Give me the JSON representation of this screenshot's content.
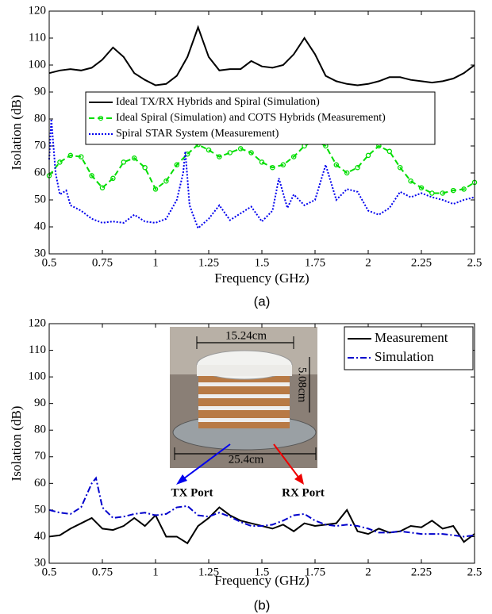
{
  "chart_data": [
    {
      "type": "line",
      "caption": "(a)",
      "xlabel": "Frequency (GHz)",
      "ylabel": "Isolation (dB)",
      "xlim": [
        0.5,
        2.5
      ],
      "ylim": [
        30,
        120
      ],
      "xticks": [
        0.5,
        0.75,
        1,
        1.25,
        1.5,
        1.75,
        2,
        2.25,
        2.5
      ],
      "yticks": [
        30,
        40,
        50,
        60,
        70,
        80,
        90,
        100,
        110,
        120
      ],
      "legend": "upper center",
      "series": [
        {
          "name": "Ideal TX/RX Hybrids and Spiral (Simulation)",
          "color": "#000000",
          "linestyle": "solid",
          "x": [
            0.5,
            0.55,
            0.6,
            0.65,
            0.7,
            0.75,
            0.8,
            0.85,
            0.9,
            0.95,
            1.0,
            1.05,
            1.1,
            1.15,
            1.2,
            1.25,
            1.3,
            1.35,
            1.4,
            1.45,
            1.5,
            1.55,
            1.6,
            1.65,
            1.7,
            1.75,
            1.8,
            1.85,
            1.9,
            1.95,
            2.0,
            2.05,
            2.1,
            2.15,
            2.2,
            2.25,
            2.3,
            2.35,
            2.4,
            2.45,
            2.5
          ],
          "values": [
            97,
            98,
            98.5,
            98,
            99,
            102,
            106.5,
            103,
            97,
            94.5,
            92.5,
            93,
            96,
            103,
            114,
            103,
            98,
            98.5,
            98.5,
            101.5,
            99.5,
            99,
            100,
            104,
            110,
            104,
            96,
            94,
            93,
            92.5,
            93,
            94,
            95.5,
            95.5,
            94.5,
            94,
            93.5,
            94,
            95,
            97,
            100
          ]
        },
        {
          "name": "Ideal Spiral (Simulation) and COTS Hybrids (Measurement)",
          "color": "#00dd00",
          "linestyle": "dashed",
          "marker": "circle",
          "x": [
            0.5,
            0.55,
            0.6,
            0.65,
            0.7,
            0.75,
            0.8,
            0.85,
            0.9,
            0.95,
            1.0,
            1.05,
            1.1,
            1.15,
            1.2,
            1.25,
            1.3,
            1.35,
            1.4,
            1.45,
            1.5,
            1.55,
            1.6,
            1.65,
            1.7,
            1.75,
            1.8,
            1.85,
            1.9,
            1.95,
            2.0,
            2.05,
            2.1,
            2.15,
            2.2,
            2.25,
            2.3,
            2.35,
            2.4,
            2.45,
            2.5
          ],
          "values": [
            59,
            64,
            66.5,
            66,
            59,
            54.5,
            58,
            64,
            65.5,
            62,
            54,
            57,
            63,
            67,
            70.5,
            68.5,
            66,
            67.5,
            69,
            67.5,
            64,
            62,
            63,
            66,
            70,
            72,
            70,
            63,
            60,
            62,
            66.5,
            70,
            68,
            62,
            57,
            54.5,
            52.5,
            52.5,
            53.5,
            54,
            56.5
          ]
        },
        {
          "name": "Spiral STAR System (Measurement)",
          "color": "#0000ee",
          "linestyle": "dotted",
          "x": [
            0.5,
            0.51,
            0.53,
            0.55,
            0.58,
            0.6,
            0.65,
            0.7,
            0.75,
            0.8,
            0.85,
            0.9,
            0.95,
            1.0,
            1.05,
            1.1,
            1.13,
            1.14,
            1.16,
            1.2,
            1.25,
            1.3,
            1.35,
            1.4,
            1.45,
            1.5,
            1.55,
            1.58,
            1.62,
            1.65,
            1.7,
            1.75,
            1.8,
            1.85,
            1.9,
            1.95,
            2.0,
            2.05,
            2.1,
            2.15,
            2.2,
            2.25,
            2.3,
            2.35,
            2.4,
            2.45,
            2.5
          ],
          "values": [
            65,
            80,
            60,
            52,
            53.5,
            48,
            46,
            43,
            41.5,
            42,
            41.5,
            44.5,
            42,
            41.5,
            43,
            50,
            60,
            68,
            48,
            39.5,
            43,
            48,
            42.5,
            45,
            47.5,
            42,
            46,
            58,
            47,
            52,
            48,
            50,
            63,
            50,
            54,
            53,
            46,
            44.5,
            47,
            53,
            51,
            52.5,
            51,
            50,
            48.5,
            50,
            51
          ]
        }
      ]
    },
    {
      "type": "line",
      "caption": "(b)",
      "xlabel": "Frequency (GHz)",
      "ylabel": "Isolation (dB)",
      "xlim": [
        0.5,
        2.5
      ],
      "ylim": [
        30,
        120
      ],
      "xticks": [
        0.5,
        0.75,
        1,
        1.25,
        1.5,
        1.75,
        2,
        2.25,
        2.5
      ],
      "yticks": [
        30,
        40,
        50,
        60,
        70,
        80,
        90,
        100,
        110,
        120
      ],
      "legend": "upper right",
      "annotations": [
        {
          "text": "15.24cm"
        },
        {
          "text": "5.08cm"
        },
        {
          "text": "25.4cm"
        },
        {
          "text": "TX Port",
          "color": "#0000ee"
        },
        {
          "text": "RX Port",
          "color": "#ee0000"
        }
      ],
      "series": [
        {
          "name": "Measurement",
          "color": "#000000",
          "linestyle": "solid",
          "x": [
            0.5,
            0.55,
            0.6,
            0.65,
            0.7,
            0.75,
            0.8,
            0.85,
            0.9,
            0.95,
            1.0,
            1.05,
            1.1,
            1.15,
            1.2,
            1.25,
            1.3,
            1.35,
            1.4,
            1.45,
            1.5,
            1.55,
            1.6,
            1.65,
            1.7,
            1.75,
            1.8,
            1.85,
            1.9,
            1.95,
            2.0,
            2.05,
            2.1,
            2.15,
            2.2,
            2.25,
            2.3,
            2.35,
            2.4,
            2.45,
            2.5
          ],
          "values": [
            40,
            40.5,
            43,
            45,
            47,
            43,
            42.5,
            44,
            47,
            44,
            48,
            40,
            40,
            37.5,
            44,
            47,
            51,
            48,
            46,
            45,
            44,
            43,
            44.5,
            42,
            45,
            44,
            44.5,
            45,
            50,
            42,
            41,
            43,
            41.5,
            42,
            44,
            43.5,
            46,
            43,
            44,
            38,
            41
          ]
        },
        {
          "name": "Simulation",
          "color": "#0000cc",
          "linestyle": "dashdot",
          "x": [
            0.5,
            0.55,
            0.6,
            0.65,
            0.7,
            0.72,
            0.75,
            0.8,
            0.85,
            0.9,
            0.95,
            1.0,
            1.05,
            1.1,
            1.15,
            1.2,
            1.25,
            1.3,
            1.35,
            1.4,
            1.45,
            1.5,
            1.55,
            1.6,
            1.65,
            1.7,
            1.75,
            1.8,
            1.85,
            1.9,
            1.95,
            2.0,
            2.05,
            2.1,
            2.15,
            2.2,
            2.25,
            2.3,
            2.35,
            2.4,
            2.45,
            2.5
          ],
          "values": [
            50,
            49,
            48.5,
            51,
            60,
            62,
            51,
            47,
            47.5,
            48.5,
            49,
            48,
            48.5,
            51,
            51.5,
            48,
            47.5,
            49,
            47.5,
            45.5,
            44,
            44,
            44.5,
            46,
            48,
            48.5,
            46,
            44.5,
            44,
            44.5,
            44,
            43,
            41.5,
            41.5,
            42,
            41.5,
            41,
            41,
            41,
            40.5,
            40,
            40.5
          ]
        }
      ]
    }
  ]
}
